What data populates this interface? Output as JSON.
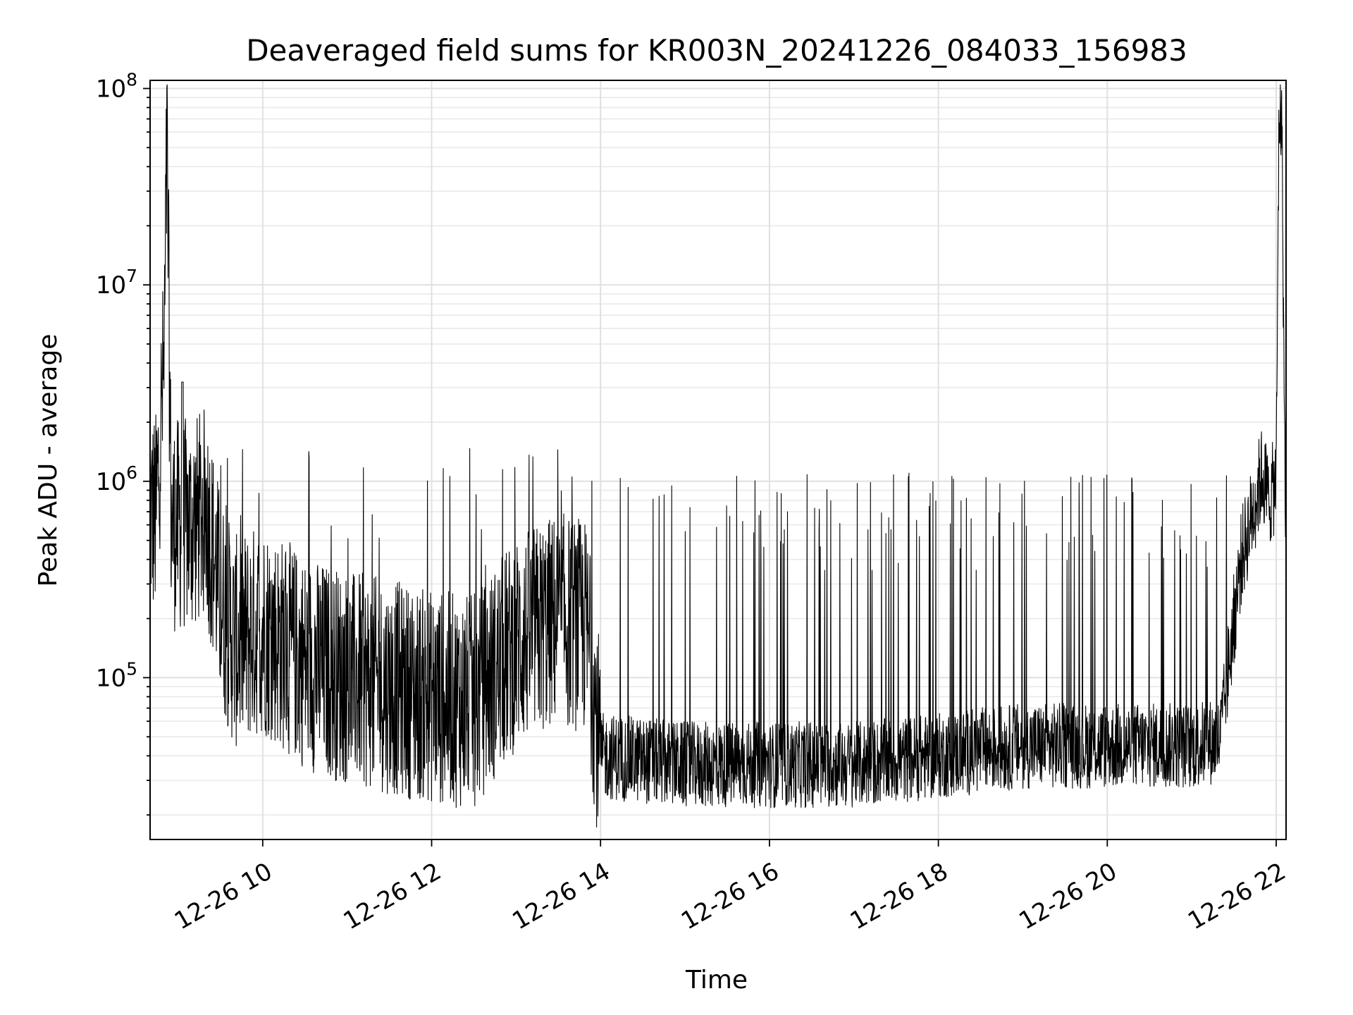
{
  "chart_data": {
    "type": "line",
    "title": "Deaveraged field sums for KR003N_20241226_084033_156983",
    "xlabel": "Time",
    "ylabel": "Peak ADU - average",
    "yscale": "log",
    "ylim": [
      15000,
      110000000
    ],
    "xlim": [
      "12-26 08:40",
      "12-26 22:07"
    ],
    "x_ticks": [
      "12-26 10",
      "12-26 12",
      "12-26 14",
      "12-26 16",
      "12-26 18",
      "12-26 20",
      "12-26 22"
    ],
    "y_ticks": [
      {
        "base": "10",
        "exp": "5"
      },
      {
        "base": "10",
        "exp": "6"
      },
      {
        "base": "10",
        "exp": "7"
      },
      {
        "base": "10",
        "exp": "8"
      }
    ],
    "grid": true,
    "line_color": "#000000",
    "series": [
      {
        "values": [
          {
            "x": "12-26 08:40",
            "y": 700000
          },
          {
            "x": "12-26 08:44",
            "y": 650000
          },
          {
            "x": "12-26 08:50",
            "y": 4000000
          },
          {
            "x": "12-26 08:52",
            "y": 55000000
          },
          {
            "x": "12-26 08:55",
            "y": 600000
          },
          {
            "x": "12-26 09:10",
            "y": 600000
          },
          {
            "x": "12-26 09:20",
            "y": 700000
          },
          {
            "x": "12-26 09:30",
            "y": 250000
          },
          {
            "x": "12-26 09:40",
            "y": 150000
          },
          {
            "x": "12-26 10:00",
            "y": 180000
          },
          {
            "x": "12-26 10:30",
            "y": 120000
          },
          {
            "x": "12-26 11:00",
            "y": 100000
          },
          {
            "x": "12-26 11:30",
            "y": 90000
          },
          {
            "x": "12-26 12:00",
            "y": 80000
          },
          {
            "x": "12-26 12:30",
            "y": 75000
          },
          {
            "x": "12-26 13:00",
            "y": 150000
          },
          {
            "x": "12-26 13:30",
            "y": 200000
          },
          {
            "x": "12-26 13:50",
            "y": 180000
          },
          {
            "x": "12-26 14:00",
            "y": 40000
          },
          {
            "x": "12-26 15:00",
            "y": 36000
          },
          {
            "x": "12-26 16:00",
            "y": 36000
          },
          {
            "x": "12-26 17:00",
            "y": 36000
          },
          {
            "x": "12-26 18:00",
            "y": 40000
          },
          {
            "x": "12-26 19:00",
            "y": 45000
          },
          {
            "x": "12-26 20:00",
            "y": 45000
          },
          {
            "x": "12-26 21:00",
            "y": 45000
          },
          {
            "x": "12-26 21:20",
            "y": 48000
          },
          {
            "x": "12-26 21:35",
            "y": 400000
          },
          {
            "x": "12-26 21:50",
            "y": 1100000
          },
          {
            "x": "12-26 21:55",
            "y": 800000
          },
          {
            "x": "12-26 22:00",
            "y": 1000000
          },
          {
            "x": "12-26 22:02",
            "y": 75000000
          },
          {
            "x": "12-26 22:04",
            "y": 70000000
          },
          {
            "x": "12-26 22:06",
            "y": 1500000
          },
          {
            "x": "12-26 22:07",
            "y": 550000
          }
        ],
        "spike_events": {
          "count_per_segment_approx": 1,
          "typical_peak_y": 1000000,
          "max_spike_y": 3200000
        }
      }
    ]
  }
}
